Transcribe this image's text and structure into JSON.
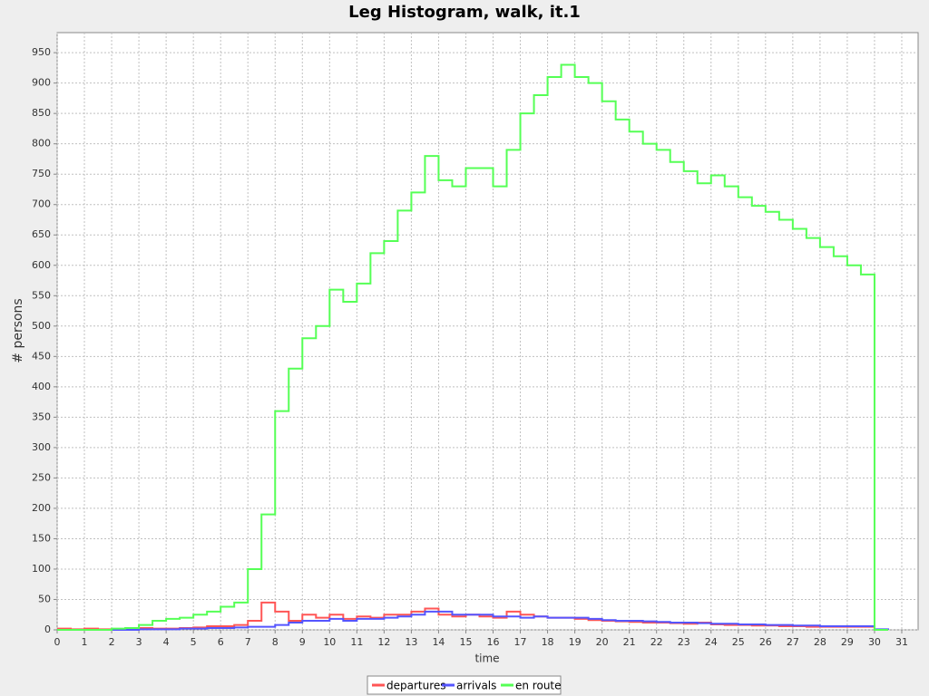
{
  "chart_data": {
    "type": "step-line",
    "title": "Leg Histogram, walk, it.1",
    "x_label": "time",
    "y_label": "# persons",
    "x": [
      0,
      0.5,
      1,
      1.5,
      2,
      2.5,
      3,
      3.5,
      4,
      4.5,
      5,
      5.5,
      6,
      6.5,
      7,
      7.5,
      8,
      8.5,
      9,
      9.5,
      10,
      10.5,
      11,
      11.5,
      12,
      12.5,
      13,
      13.5,
      14,
      14.5,
      15,
      15.5,
      16,
      16.5,
      17,
      17.5,
      18,
      18.5,
      19,
      19.5,
      20,
      20.5,
      21,
      21.5,
      22,
      22.5,
      23,
      23.5,
      24,
      24.5,
      25,
      25.5,
      26,
      26.5,
      27,
      27.5,
      28,
      28.5,
      29,
      29.5,
      30,
      30.5
    ],
    "series": [
      {
        "name": "departures",
        "color": "#ff5555",
        "values": [
          2,
          1,
          2,
          1,
          1,
          2,
          3,
          2,
          2,
          3,
          4,
          6,
          6,
          8,
          15,
          45,
          30,
          15,
          25,
          20,
          25,
          18,
          22,
          20,
          25,
          25,
          30,
          35,
          25,
          22,
          25,
          22,
          20,
          30,
          25,
          22,
          20,
          20,
          18,
          16,
          15,
          14,
          13,
          12,
          12,
          11,
          10,
          12,
          9,
          8,
          8,
          7,
          7,
          6,
          6,
          5,
          5,
          5,
          5,
          5,
          0,
          0
        ]
      },
      {
        "name": "arrivals",
        "color": "#5555ff",
        "values": [
          0,
          0,
          0,
          0,
          0,
          0,
          1,
          1,
          1,
          2,
          2,
          3,
          3,
          4,
          5,
          5,
          8,
          12,
          15,
          15,
          18,
          15,
          18,
          18,
          20,
          22,
          25,
          30,
          30,
          25,
          25,
          25,
          22,
          22,
          20,
          22,
          20,
          20,
          20,
          18,
          16,
          15,
          15,
          14,
          13,
          12,
          12,
          11,
          10,
          10,
          9,
          9,
          8,
          8,
          7,
          7,
          6,
          6,
          6,
          6,
          1,
          0
        ]
      },
      {
        "name": "en route",
        "color": "#55ff55",
        "values": [
          0,
          0,
          0,
          0,
          2,
          3,
          8,
          15,
          18,
          20,
          25,
          30,
          38,
          45,
          100,
          190,
          360,
          430,
          480,
          500,
          560,
          540,
          570,
          620,
          640,
          690,
          720,
          780,
          740,
          730,
          760,
          760,
          730,
          790,
          850,
          880,
          910,
          930,
          910,
          900,
          870,
          840,
          820,
          800,
          790,
          770,
          755,
          735,
          748,
          730,
          712,
          698,
          688,
          675,
          660,
          645,
          630,
          615,
          600,
          585,
          0,
          0
        ]
      }
    ],
    "xlim": [
      0,
      31.6
    ],
    "ylim": [
      0,
      983
    ],
    "xticks": [
      0,
      1,
      2,
      3,
      4,
      5,
      6,
      7,
      8,
      9,
      10,
      11,
      12,
      13,
      14,
      15,
      16,
      17,
      18,
      19,
      20,
      21,
      22,
      23,
      24,
      25,
      26,
      27,
      28,
      29,
      30,
      31
    ],
    "yticks": [
      0,
      50,
      100,
      150,
      200,
      250,
      300,
      350,
      400,
      450,
      500,
      550,
      600,
      650,
      700,
      750,
      800,
      850,
      900,
      950
    ],
    "grid": true,
    "legend": "bottom"
  }
}
